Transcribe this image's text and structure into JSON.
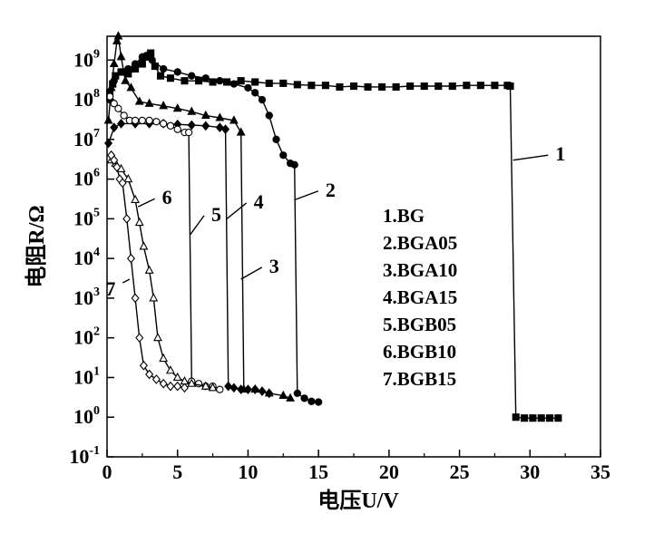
{
  "chart_data": {
    "type": "line",
    "title": "",
    "xlabel": "电压U/V",
    "ylabel": "电阻R/Ω",
    "x_axis": {
      "min": 0,
      "max": 35,
      "ticks": [
        "0",
        "5",
        "10",
        "15",
        "20",
        "25",
        "30",
        "35"
      ]
    },
    "y_axis": {
      "scale": "log",
      "min_exp": -1,
      "max_exp": 9.6,
      "ticks": [
        {
          "base": "10",
          "exp": "-1"
        },
        {
          "base": "10",
          "exp": "0"
        },
        {
          "base": "10",
          "exp": "1"
        },
        {
          "base": "10",
          "exp": "2"
        },
        {
          "base": "10",
          "exp": "3"
        },
        {
          "base": "10",
          "exp": "4"
        },
        {
          "base": "10",
          "exp": "5"
        },
        {
          "base": "10",
          "exp": "6"
        },
        {
          "base": "10",
          "exp": "7"
        },
        {
          "base": "10",
          "exp": "8"
        },
        {
          "base": "10",
          "exp": "9"
        }
      ]
    },
    "grid": false,
    "legend": {
      "placement": "right-center",
      "entries": [
        "1.BG",
        "2.BGA05",
        "3.BGA10",
        "4.BGA15",
        "5.BGB05",
        "6.BGB10",
        "7.BGB15"
      ]
    },
    "series": [
      {
        "name": "1.BG",
        "marker": "square-filled",
        "points": [
          [
            0.2,
            150000000.0
          ],
          [
            0.4,
            250000000.0
          ],
          [
            0.6,
            400000000.0
          ],
          [
            1.0,
            500000000.0
          ],
          [
            1.5,
            450000000.0
          ],
          [
            2.0,
            600000000.0
          ],
          [
            2.5,
            800000000.0
          ],
          [
            2.8,
            1200000000.0
          ],
          [
            3.1,
            1500000000.0
          ],
          [
            3.4,
            700000000.0
          ],
          [
            3.8,
            400000000.0
          ],
          [
            4.5,
            350000000.0
          ],
          [
            5.5,
            300000000.0
          ],
          [
            6.5,
            300000000.0
          ],
          [
            7.5,
            280000000.0
          ],
          [
            8.5,
            280000000.0
          ],
          [
            9.5,
            300000000.0
          ],
          [
            10.5,
            280000000.0
          ],
          [
            11.5,
            260000000.0
          ],
          [
            12.5,
            260000000.0
          ],
          [
            13.5,
            240000000.0
          ],
          [
            14.5,
            230000000.0
          ],
          [
            15.5,
            230000000.0
          ],
          [
            16.5,
            210000000.0
          ],
          [
            17.5,
            220000000.0
          ],
          [
            18.5,
            210000000.0
          ],
          [
            19.5,
            210000000.0
          ],
          [
            20.5,
            210000000.0
          ],
          [
            21.5,
            220000000.0
          ],
          [
            22.5,
            220000000.0
          ],
          [
            23.5,
            220000000.0
          ],
          [
            24.5,
            220000000.0
          ],
          [
            25.5,
            230000000.0
          ],
          [
            26.5,
            230000000.0
          ],
          [
            27.5,
            230000000.0
          ],
          [
            28.4,
            230000000.0
          ],
          [
            28.6,
            220000000.0
          ],
          [
            29.0,
            1.0
          ],
          [
            29.6,
            0.95
          ],
          [
            30.2,
            0.95
          ],
          [
            30.8,
            0.95
          ],
          [
            31.4,
            0.95
          ],
          [
            32.0,
            0.95
          ]
        ]
      },
      {
        "name": "2.BGA05",
        "marker": "circle-filled",
        "points": [
          [
            0.2,
            100000000.0
          ],
          [
            0.5,
            300000000.0
          ],
          [
            1.0,
            500000000.0
          ],
          [
            1.5,
            600000000.0
          ],
          [
            2.0,
            800000000.0
          ],
          [
            2.5,
            1200000000.0
          ],
          [
            2.8,
            1300000000.0
          ],
          [
            3.2,
            1000000000.0
          ],
          [
            4.0,
            600000000.0
          ],
          [
            5.0,
            500000000.0
          ],
          [
            6.0,
            400000000.0
          ],
          [
            7.0,
            350000000.0
          ],
          [
            8.0,
            300000000.0
          ],
          [
            9.0,
            250000000.0
          ],
          [
            10.0,
            200000000.0
          ],
          [
            10.5,
            150000000.0
          ],
          [
            11.0,
            100000000.0
          ],
          [
            11.5,
            40000000.0
          ],
          [
            12.0,
            10000000.0
          ],
          [
            12.5,
            4000000.0
          ],
          [
            13.0,
            2500000.0
          ],
          [
            13.3,
            2300000.0
          ],
          [
            13.5,
            4.0
          ],
          [
            14.0,
            3.0
          ],
          [
            14.5,
            2.5
          ],
          [
            15.0,
            2.4
          ]
        ]
      },
      {
        "name": "3.BGA10",
        "marker": "triangle-filled",
        "points": [
          [
            0.1,
            30000000.0
          ],
          [
            0.3,
            200000000.0
          ],
          [
            0.5,
            800000000.0
          ],
          [
            0.7,
            3000000000.0
          ],
          [
            0.8,
            4000000000.0
          ],
          [
            1.0,
            1200000000.0
          ],
          [
            1.3,
            300000000.0
          ],
          [
            1.7,
            200000000.0
          ],
          [
            2.3,
            90000000.0
          ],
          [
            3.0,
            80000000.0
          ],
          [
            4.0,
            70000000.0
          ],
          [
            5.0,
            60000000.0
          ],
          [
            6.0,
            50000000.0
          ],
          [
            7.0,
            40000000.0
          ],
          [
            8.0,
            35000000.0
          ],
          [
            9.0,
            30000000.0
          ],
          [
            9.5,
            15000000.0
          ],
          [
            9.7,
            5.0
          ],
          [
            10.5,
            5.0
          ],
          [
            11.5,
            4.0
          ],
          [
            12.5,
            3.5
          ],
          [
            13.0,
            3.0
          ]
        ]
      },
      {
        "name": "4.BGA15",
        "marker": "diamond-filled",
        "points": [
          [
            0.1,
            8000000.0
          ],
          [
            0.5,
            20000000.0
          ],
          [
            1.0,
            25000000.0
          ],
          [
            2.0,
            25000000.0
          ],
          [
            3.0,
            25000000.0
          ],
          [
            4.0,
            25000000.0
          ],
          [
            5.0,
            24000000.0
          ],
          [
            6.0,
            23000000.0
          ],
          [
            7.0,
            22000000.0
          ],
          [
            8.0,
            20000000.0
          ],
          [
            8.4,
            18000000.0
          ],
          [
            8.6,
            6.0
          ],
          [
            9.0,
            5.5
          ],
          [
            9.5,
            5.0
          ],
          [
            10.0,
            5.0
          ],
          [
            10.5,
            5.0
          ],
          [
            11.0,
            4.5
          ],
          [
            11.5,
            4.0
          ]
        ]
      },
      {
        "name": "5.BGB05",
        "marker": "circle-open",
        "points": [
          [
            0.2,
            120000000.0
          ],
          [
            0.5,
            80000000.0
          ],
          [
            0.8,
            60000000.0
          ],
          [
            1.2,
            40000000.0
          ],
          [
            1.6,
            30000000.0
          ],
          [
            2.0,
            30000000.0
          ],
          [
            2.5,
            30000000.0
          ],
          [
            3.0,
            30000000.0
          ],
          [
            3.5,
            28000000.0
          ],
          [
            4.0,
            25000000.0
          ],
          [
            4.5,
            22000000.0
          ],
          [
            5.0,
            18000000.0
          ],
          [
            5.5,
            15000000.0
          ],
          [
            5.8,
            15000000.0
          ],
          [
            6.0,
            8.0
          ],
          [
            6.5,
            7.0
          ],
          [
            7.0,
            6.0
          ],
          [
            7.5,
            6.0
          ],
          [
            8.0,
            5.0
          ]
        ]
      },
      {
        "name": "6.BGB10",
        "marker": "triangle-open",
        "points": [
          [
            0.3,
            3000000.0
          ],
          [
            0.6,
            2500000.0
          ],
          [
            1.0,
            1800000.0
          ],
          [
            1.5,
            1000000.0
          ],
          [
            2.0,
            300000.0
          ],
          [
            2.3,
            80000.0
          ],
          [
            2.6,
            20000.0
          ],
          [
            3.0,
            5000.0
          ],
          [
            3.3,
            1000.0
          ],
          [
            3.6,
            100.0
          ],
          [
            4.0,
            30
          ],
          [
            4.5,
            15
          ],
          [
            5.0,
            10
          ],
          [
            5.5,
            8
          ],
          [
            6.0,
            7
          ],
          [
            7.0,
            6
          ],
          [
            7.5,
            5.5
          ]
        ]
      },
      {
        "name": "7.BGB15",
        "marker": "diamond-open",
        "points": [
          [
            0.3,
            4000000.0
          ],
          [
            0.5,
            3000000.0
          ],
          [
            0.7,
            2000000.0
          ],
          [
            0.9,
            1000000.0
          ],
          [
            1.1,
            800000.0
          ],
          [
            1.4,
            100000.0
          ],
          [
            1.7,
            10000.0
          ],
          [
            2.0,
            1000.0
          ],
          [
            2.3,
            100.0
          ],
          [
            2.6,
            20
          ],
          [
            3.0,
            12
          ],
          [
            3.5,
            9
          ],
          [
            4.0,
            7
          ],
          [
            4.5,
            6
          ],
          [
            5.0,
            6
          ],
          [
            5.5,
            5.5
          ]
        ]
      }
    ],
    "callouts": [
      {
        "label": "1",
        "series": "1.BG",
        "tip": [
          28.8,
          3000000.0
        ],
        "text_at": [
          31.8,
          4000000.0
        ]
      },
      {
        "label": "2",
        "series": "2.BGA05",
        "tip": [
          13.3,
          300000.0
        ],
        "text_at": [
          15.5,
          500000.0
        ]
      },
      {
        "label": "3",
        "series": "3.BGA10",
        "tip": [
          9.5,
          3000.0
        ],
        "text_at": [
          11.5,
          6000.0
        ]
      },
      {
        "label": "4",
        "series": "4.BGA15",
        "tip": [
          8.5,
          100000.0
        ],
        "text_at": [
          10.4,
          250000.0
        ]
      },
      {
        "label": "5",
        "series": "5.BGB05",
        "tip": [
          5.9,
          40000.0
        ],
        "text_at": [
          7.4,
          120000.0
        ]
      },
      {
        "label": "6",
        "series": "6.BGB10",
        "tip": [
          2.2,
          200000.0
        ],
        "text_at": [
          3.9,
          320000.0
        ]
      },
      {
        "label": "7",
        "series": "7.BGB15",
        "tip": [
          1.6,
          3000.0
        ],
        "text_at": [
          0.6,
          1600.0
        ]
      }
    ]
  }
}
